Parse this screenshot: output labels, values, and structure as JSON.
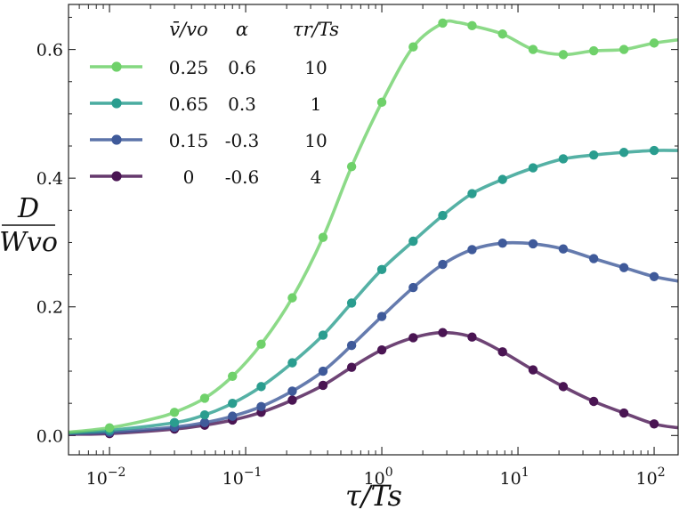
{
  "chart_data": {
    "type": "line",
    "x_scale": "log",
    "xlim": [
      0.005,
      150
    ],
    "ylim": [
      -0.03,
      0.67
    ],
    "xlabel": "τ/Ts",
    "ylabel_numerator": "D",
    "ylabel_denominator": "Wvo",
    "y_ticks": [
      {
        "value": 0.0,
        "label": "0.0"
      },
      {
        "value": 0.2,
        "label": "0.2"
      },
      {
        "value": 0.4,
        "label": "0.4"
      },
      {
        "value": 0.6,
        "label": "0.6"
      }
    ],
    "x_ticks": [
      {
        "value": 0.01,
        "base": "10",
        "exp": "−2"
      },
      {
        "value": 0.1,
        "base": "10",
        "exp": "−1"
      },
      {
        "value": 1,
        "base": "10",
        "exp": "0"
      },
      {
        "value": 10,
        "base": "10",
        "exp": "1"
      },
      {
        "value": 100,
        "base": "10",
        "exp": "2"
      }
    ],
    "legend_headers": [
      "v̄/vo",
      "α",
      "τr/Ts"
    ],
    "series": [
      {
        "name": "0.25 / 0.6 / 10",
        "vbar": "0.25",
        "alpha": "0.6",
        "tau_r": "10",
        "color": "#6fd16a",
        "x": [
          0.01,
          0.03,
          0.05,
          0.08,
          0.13,
          0.22,
          0.37,
          0.6,
          1.0,
          1.7,
          2.8,
          4.6,
          7.7,
          12.9,
          21.5,
          36,
          60,
          100
        ],
        "y": [
          0.012,
          0.036,
          0.058,
          0.092,
          0.142,
          0.214,
          0.308,
          0.418,
          0.518,
          0.604,
          0.641,
          0.637,
          0.624,
          0.6,
          0.592,
          0.598,
          0.6,
          0.61
        ],
        "curve_x": [
          0.005,
          0.01,
          0.02,
          0.03,
          0.05,
          0.08,
          0.13,
          0.22,
          0.37,
          0.6,
          1.0,
          1.7,
          2.8,
          3.6,
          4.6,
          7.7,
          12.9,
          21.5,
          36,
          60,
          100,
          150
        ],
        "curve_y": [
          0.005,
          0.012,
          0.025,
          0.036,
          0.058,
          0.092,
          0.142,
          0.214,
          0.308,
          0.418,
          0.518,
          0.604,
          0.641,
          0.642,
          0.637,
          0.624,
          0.6,
          0.592,
          0.598,
          0.6,
          0.61,
          0.615
        ]
      },
      {
        "name": "0.65 / 0.3 / 1",
        "vbar": "0.65",
        "alpha": "0.3",
        "tau_r": "1",
        "color": "#2a9d8f",
        "x": [
          0.01,
          0.03,
          0.05,
          0.08,
          0.13,
          0.22,
          0.37,
          0.6,
          1.0,
          1.7,
          2.8,
          4.6,
          7.7,
          12.9,
          21.5,
          36,
          60,
          100
        ],
        "y": [
          0.008,
          0.02,
          0.032,
          0.05,
          0.076,
          0.113,
          0.156,
          0.206,
          0.258,
          0.302,
          0.342,
          0.376,
          0.398,
          0.416,
          0.43,
          0.436,
          0.44,
          0.443
        ],
        "curve_x": [
          0.005,
          0.01,
          0.03,
          0.05,
          0.08,
          0.13,
          0.22,
          0.37,
          0.6,
          1.0,
          1.7,
          2.8,
          4.6,
          7.7,
          12.9,
          21.5,
          36,
          60,
          100,
          150
        ],
        "curve_y": [
          0.004,
          0.008,
          0.02,
          0.032,
          0.05,
          0.076,
          0.113,
          0.156,
          0.206,
          0.258,
          0.302,
          0.342,
          0.376,
          0.398,
          0.416,
          0.43,
          0.436,
          0.44,
          0.443,
          0.443
        ]
      },
      {
        "name": "0.15 / -0.3 / 10",
        "vbar": "0.15",
        "alpha": "-0.3",
        "tau_r": "10",
        "color": "#3f5a9a",
        "x": [
          0.01,
          0.03,
          0.05,
          0.08,
          0.13,
          0.22,
          0.37,
          0.6,
          1.0,
          1.7,
          2.8,
          4.6,
          7.7,
          12.9,
          21.5,
          36,
          60,
          100
        ],
        "y": [
          0.005,
          0.013,
          0.02,
          0.03,
          0.045,
          0.069,
          0.1,
          0.14,
          0.185,
          0.23,
          0.266,
          0.289,
          0.299,
          0.298,
          0.29,
          0.275,
          0.261,
          0.247
        ],
        "curve_x": [
          0.005,
          0.01,
          0.03,
          0.05,
          0.08,
          0.13,
          0.22,
          0.37,
          0.6,
          1.0,
          1.7,
          2.8,
          4.6,
          7.7,
          12.9,
          21.5,
          36,
          60,
          100,
          150
        ],
        "curve_y": [
          0.003,
          0.005,
          0.013,
          0.02,
          0.03,
          0.045,
          0.069,
          0.1,
          0.14,
          0.185,
          0.23,
          0.266,
          0.289,
          0.299,
          0.298,
          0.29,
          0.275,
          0.261,
          0.247,
          0.24
        ]
      },
      {
        "name": "0 / -0.6 / 4",
        "vbar": "0",
        "alpha": "-0.6",
        "tau_r": "4",
        "color": "#4a1553",
        "x": [
          0.01,
          0.03,
          0.05,
          0.08,
          0.13,
          0.22,
          0.37,
          0.6,
          1.0,
          1.7,
          2.8,
          4.6,
          7.7,
          12.9,
          21.5,
          36,
          60,
          100
        ],
        "y": [
          0.003,
          0.01,
          0.016,
          0.024,
          0.036,
          0.055,
          0.078,
          0.106,
          0.133,
          0.152,
          0.16,
          0.153,
          0.13,
          0.102,
          0.076,
          0.053,
          0.035,
          0.018
        ],
        "curve_x": [
          0.005,
          0.01,
          0.03,
          0.05,
          0.08,
          0.13,
          0.22,
          0.37,
          0.6,
          1.0,
          1.7,
          2.8,
          4.6,
          7.7,
          12.9,
          21.5,
          36,
          60,
          100,
          150
        ],
        "curve_y": [
          0.002,
          0.003,
          0.01,
          0.016,
          0.024,
          0.036,
          0.055,
          0.078,
          0.106,
          0.133,
          0.152,
          0.16,
          0.153,
          0.13,
          0.102,
          0.076,
          0.053,
          0.035,
          0.018,
          0.012
        ]
      }
    ]
  }
}
